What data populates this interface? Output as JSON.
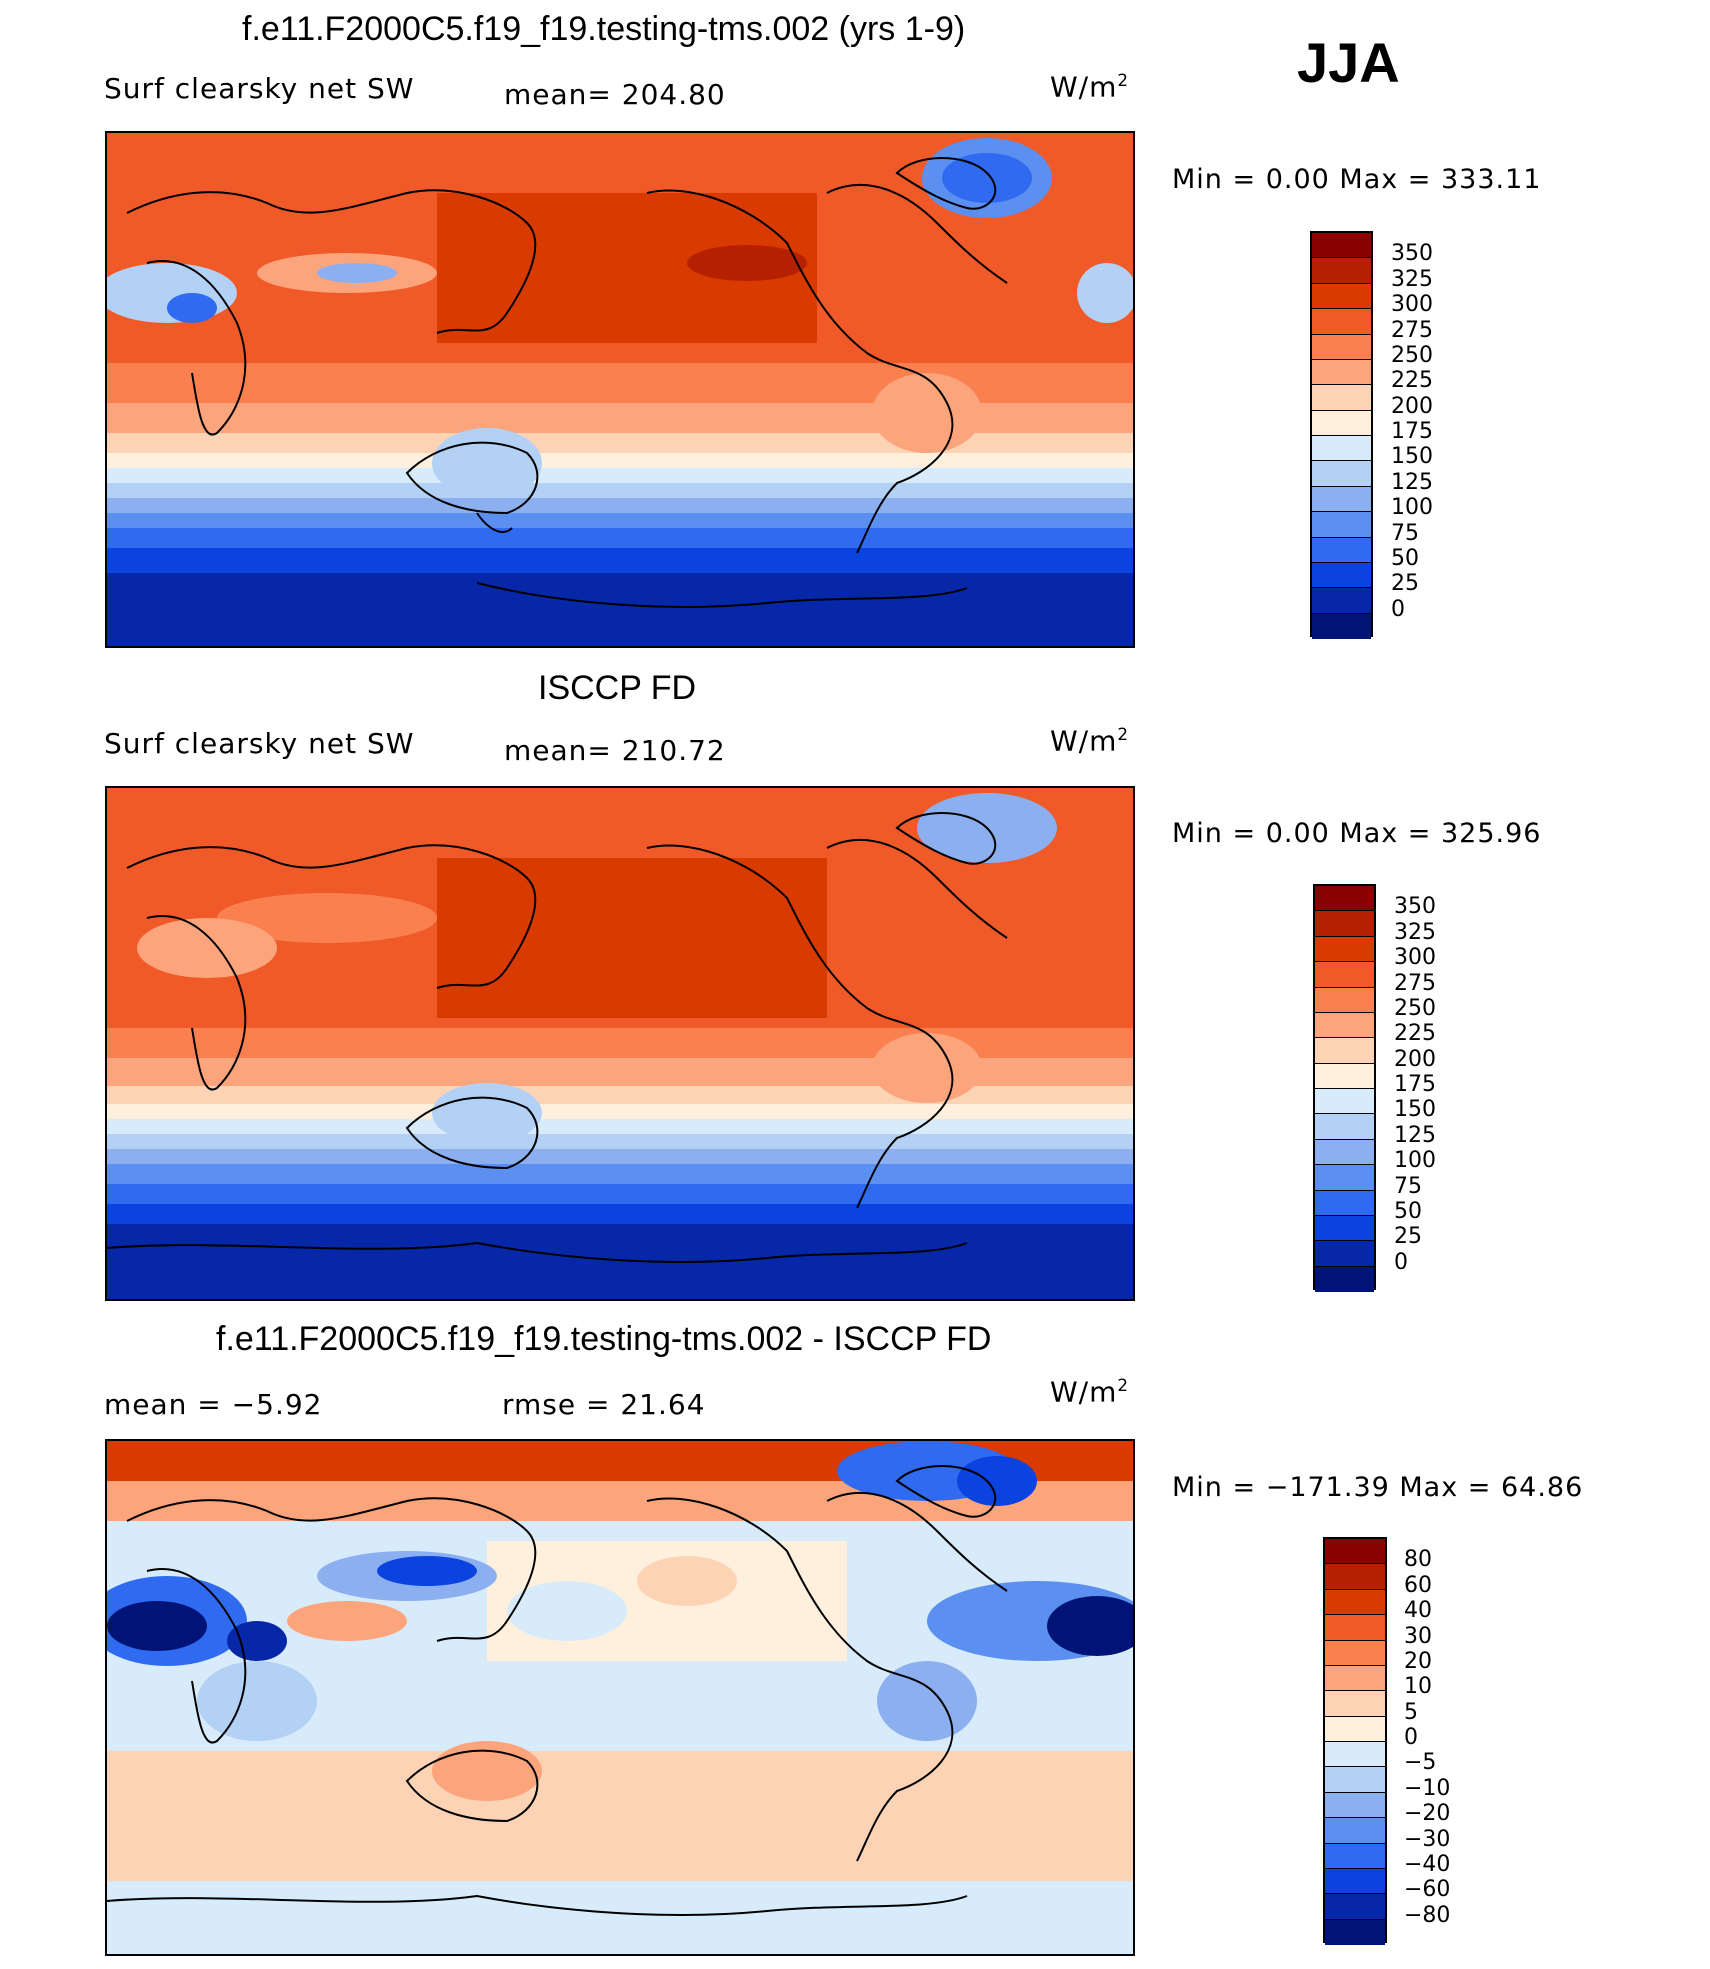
{
  "season": "JJA",
  "panels": [
    {
      "title": "f.e11.F2000C5.f19_f19.testing-tms.002 (yrs 1-9)",
      "left_label": "Surf clearsky net SW",
      "stat_label": "mean= 204.80",
      "stat2_label": "",
      "units_main": "W/m",
      "units_sup": "2",
      "min_max": "Min =    0.00 Max = 333.11",
      "colorbar_labels": [
        "350",
        "325",
        "300",
        "275",
        "250",
        "225",
        "200",
        "175",
        "150",
        "125",
        "100",
        "75",
        "50",
        "25",
        "0"
      ],
      "colorbar_colors": [
        "#8b0000",
        "#b52000",
        "#d83a00",
        "#f05a28",
        "#fb8050",
        "#fca47c",
        "#fdd3b5",
        "#fff0dd",
        "#d8ebfa",
        "#b3d0f5",
        "#8cb0ef",
        "#5b8ff0",
        "#2f6af0",
        "#0a43e0",
        "#0627a8",
        "#001478"
      ]
    },
    {
      "title": "ISCCP FD",
      "left_label": "Surf clearsky net SW",
      "stat_label": "mean= 210.72",
      "stat2_label": "",
      "units_main": "W/m",
      "units_sup": "2",
      "min_max": "Min =    0.00 Max = 325.96",
      "colorbar_labels": [
        "350",
        "325",
        "300",
        "275",
        "250",
        "225",
        "200",
        "175",
        "150",
        "125",
        "100",
        "75",
        "50",
        "25",
        "0"
      ],
      "colorbar_colors": [
        "#8b0000",
        "#b52000",
        "#d83a00",
        "#f05a28",
        "#fb8050",
        "#fca47c",
        "#fdd3b5",
        "#fff0dd",
        "#d8ebfa",
        "#b3d0f5",
        "#8cb0ef",
        "#5b8ff0",
        "#2f6af0",
        "#0a43e0",
        "#0627a8",
        "#001478"
      ]
    },
    {
      "title": "f.e11.F2000C5.f19_f19.testing-tms.002 - ISCCP FD",
      "left_label": "mean =   −5.92",
      "stat_label": "rmse =   21.64",
      "stat2_label": "",
      "units_main": "W/m",
      "units_sup": "2",
      "min_max": "Min = −171.39 Max =   64.86",
      "colorbar_labels": [
        "80",
        "60",
        "40",
        "30",
        "20",
        "10",
        "5",
        "0",
        "−5",
        "−10",
        "−20",
        "−30",
        "−40",
        "−60",
        "−80"
      ],
      "colorbar_colors": [
        "#8b0000",
        "#b52000",
        "#d83a00",
        "#f05a28",
        "#fb8050",
        "#fca47c",
        "#fdd3b5",
        "#fff0dd",
        "#d8ebfa",
        "#b3d0f5",
        "#8cb0ef",
        "#5b8ff0",
        "#2f6af0",
        "#0a43e0",
        "#0627a8",
        "#001478"
      ]
    }
  ]
}
